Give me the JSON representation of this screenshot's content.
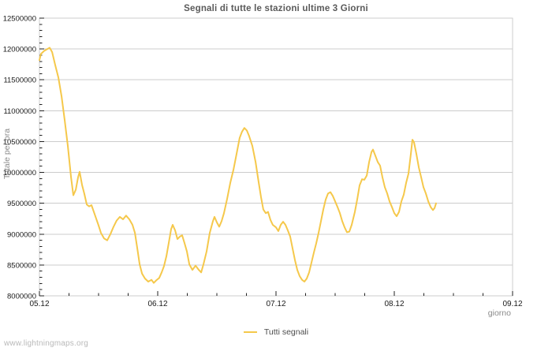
{
  "footer": {
    "watermark": "www.lightningmaps.org"
  },
  "colors": {
    "line": "#F5C84B",
    "grid": "#CCCCCC",
    "frame": "#CCCCCC",
    "tick": "#222222",
    "tick_label": "#1A1A1A",
    "title": "#5A5A5A",
    "axis_title": "#8A8A8A",
    "legend_text": "#4D4D4D",
    "watermark": "#B9B9B9"
  },
  "chart_data": {
    "type": "line",
    "title": "Segnali di tutte le stazioni ultime 3 Giorni",
    "xlabel": "giorno",
    "ylabel": "Totale per ora",
    "xlim": [
      5,
      9
    ],
    "ylim": [
      8000000,
      12500000
    ],
    "grid": "horizontal major gridlines only",
    "legend_position": "bottom-center",
    "x_minor_tick_step": 0.25,
    "y_minor_tick_step": 100000,
    "xticks": [
      {
        "value": 5,
        "label": "05.12"
      },
      {
        "value": 6,
        "label": "06.12"
      },
      {
        "value": 7,
        "label": "07.12"
      },
      {
        "value": 8,
        "label": "08.12"
      },
      {
        "value": 9,
        "label": "09.12"
      }
    ],
    "yticks": [
      {
        "value": 8000000,
        "label": "8000000"
      },
      {
        "value": 8500000,
        "label": "8500000"
      },
      {
        "value": 9000000,
        "label": "9000000"
      },
      {
        "value": 9500000,
        "label": "9500000"
      },
      {
        "value": 10000000,
        "label": "10000000"
      },
      {
        "value": 10500000,
        "label": "10500000"
      },
      {
        "value": 11000000,
        "label": "11000000"
      },
      {
        "value": 11500000,
        "label": "11500000"
      },
      {
        "value": 12000000,
        "label": "12000000"
      },
      {
        "value": 12500000,
        "label": "12500000"
      }
    ],
    "series": [
      {
        "name": "Tutti segnali",
        "color": "#F5C84B",
        "x": [
          5.0,
          5.013,
          5.04,
          5.067,
          5.087,
          5.107,
          5.133,
          5.16,
          5.187,
          5.213,
          5.24,
          5.267,
          5.287,
          5.307,
          5.327,
          5.34,
          5.36,
          5.38,
          5.4,
          5.42,
          5.44,
          5.46,
          5.48,
          5.5,
          5.52,
          5.547,
          5.573,
          5.6,
          5.627,
          5.653,
          5.68,
          5.707,
          5.733,
          5.76,
          5.787,
          5.807,
          5.827,
          5.847,
          5.867,
          5.893,
          5.92,
          5.947,
          5.967,
          5.987,
          6.013,
          6.033,
          6.053,
          6.073,
          6.093,
          6.113,
          6.127,
          6.147,
          6.167,
          6.187,
          6.207,
          6.227,
          6.247,
          6.267,
          6.293,
          6.32,
          6.347,
          6.367,
          6.387,
          6.413,
          6.44,
          6.467,
          6.48,
          6.5,
          6.52,
          6.54,
          6.56,
          6.587,
          6.613,
          6.64,
          6.667,
          6.693,
          6.713,
          6.733,
          6.753,
          6.773,
          6.8,
          6.827,
          6.853,
          6.873,
          6.893,
          6.913,
          6.933,
          6.953,
          6.973,
          7.0,
          7.02,
          7.04,
          7.06,
          7.08,
          7.1,
          7.12,
          7.14,
          7.16,
          7.18,
          7.2,
          7.22,
          7.24,
          7.26,
          7.28,
          7.3,
          7.32,
          7.34,
          7.36,
          7.38,
          7.4,
          7.42,
          7.44,
          7.46,
          7.48,
          7.5,
          7.52,
          7.54,
          7.56,
          7.58,
          7.6,
          7.62,
          7.64,
          7.667,
          7.687,
          7.707,
          7.727,
          7.747,
          7.767,
          7.787,
          7.807,
          7.82,
          7.84,
          7.86,
          7.88,
          7.9,
          7.92,
          7.94,
          7.96,
          7.98,
          8.0,
          8.02,
          8.04,
          8.06,
          8.08,
          8.1,
          8.12,
          8.14,
          8.153,
          8.167,
          8.187,
          8.207,
          8.227,
          8.247,
          8.267,
          8.287,
          8.307,
          8.327,
          8.34,
          8.353
        ],
        "y": [
          11820000,
          11920000,
          11970000,
          12000000,
          12020000,
          11950000,
          11740000,
          11540000,
          11230000,
          10850000,
          10430000,
          9920000,
          9630000,
          9720000,
          9920000,
          10010000,
          9800000,
          9650000,
          9480000,
          9450000,
          9470000,
          9360000,
          9250000,
          9140000,
          9020000,
          8930000,
          8900000,
          9000000,
          9120000,
          9220000,
          9280000,
          9240000,
          9300000,
          9240000,
          9150000,
          9020000,
          8770000,
          8510000,
          8360000,
          8280000,
          8230000,
          8260000,
          8210000,
          8250000,
          8290000,
          8380000,
          8480000,
          8640000,
          8850000,
          9080000,
          9150000,
          9060000,
          8920000,
          8960000,
          8980000,
          8850000,
          8720000,
          8510000,
          8420000,
          8490000,
          8420000,
          8380000,
          8510000,
          8720000,
          9020000,
          9210000,
          9280000,
          9190000,
          9120000,
          9210000,
          9340000,
          9570000,
          9830000,
          10040000,
          10300000,
          10560000,
          10660000,
          10720000,
          10680000,
          10590000,
          10430000,
          10170000,
          9850000,
          9600000,
          9400000,
          9340000,
          9360000,
          9230000,
          9150000,
          9110000,
          9050000,
          9150000,
          9200000,
          9150000,
          9060000,
          8960000,
          8770000,
          8580000,
          8420000,
          8320000,
          8260000,
          8230000,
          8280000,
          8380000,
          8540000,
          8700000,
          8850000,
          9020000,
          9210000,
          9400000,
          9560000,
          9660000,
          9680000,
          9620000,
          9530000,
          9440000,
          9340000,
          9210000,
          9110000,
          9030000,
          9040000,
          9150000,
          9360000,
          9570000,
          9790000,
          9890000,
          9880000,
          9950000,
          10170000,
          10330000,
          10370000,
          10270000,
          10170000,
          10110000,
          9920000,
          9760000,
          9660000,
          9530000,
          9440000,
          9340000,
          9290000,
          9360000,
          9530000,
          9640000,
          9830000,
          9980000,
          10300000,
          10530000,
          10490000,
          10300000,
          10080000,
          9920000,
          9760000,
          9660000,
          9530000,
          9440000,
          9390000,
          9420000,
          9500000
        ]
      }
    ]
  }
}
